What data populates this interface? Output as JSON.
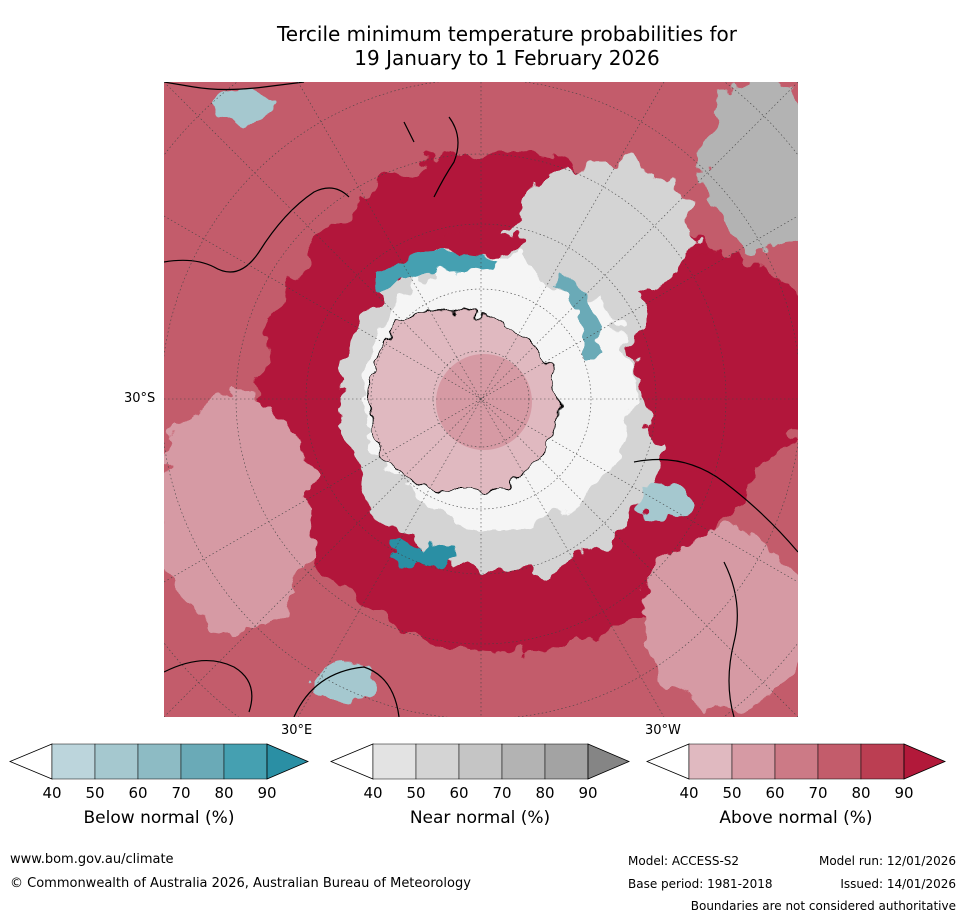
{
  "title": {
    "line1": "Tercile minimum temperature probabilities for",
    "line2": "19 January to 1 February 2026"
  },
  "map": {
    "projection": "south-polar-stereographic",
    "latitude_label": "30°S",
    "longitude_labels": [
      "30°E",
      "30°W"
    ],
    "colors": {
      "below": [
        "#ffffff",
        "#bcd5dc",
        "#a5c8cf",
        "#8dbbc4",
        "#6aaab7",
        "#45a0b1",
        "#2a8fa4"
      ],
      "near": [
        "#ffffff",
        "#e3e3e3",
        "#d4d4d4",
        "#c5c5c5",
        "#b3b3b3",
        "#a3a3a3",
        "#858585"
      ],
      "above": [
        "#ffffff",
        "#e0b9c0",
        "#d69aa4",
        "#cc7a86",
        "#c35c6b",
        "#bb3e52",
        "#b2193a"
      ]
    }
  },
  "legends": [
    {
      "id": "below",
      "label": "Below normal (%)",
      "ticks": [
        "40",
        "50",
        "60",
        "70",
        "80",
        "90"
      ]
    },
    {
      "id": "near",
      "label": "Near normal (%)",
      "ticks": [
        "40",
        "50",
        "60",
        "70",
        "80",
        "90"
      ]
    },
    {
      "id": "above",
      "label": "Above normal (%)",
      "ticks": [
        "40",
        "50",
        "60",
        "70",
        "80",
        "90"
      ]
    }
  ],
  "footer": {
    "website": "www.bom.gov.au/climate",
    "copyright": "© Commonwealth of Australia 2026, Australian Bureau of Meteorology",
    "model": "Model: ACCESS-S2",
    "base_period": "Base period: 1981-2018",
    "model_run": "Model run: 12/01/2026",
    "issued": "Issued: 14/01/2026",
    "disclaimer": "Boundaries are not considered authoritative"
  }
}
